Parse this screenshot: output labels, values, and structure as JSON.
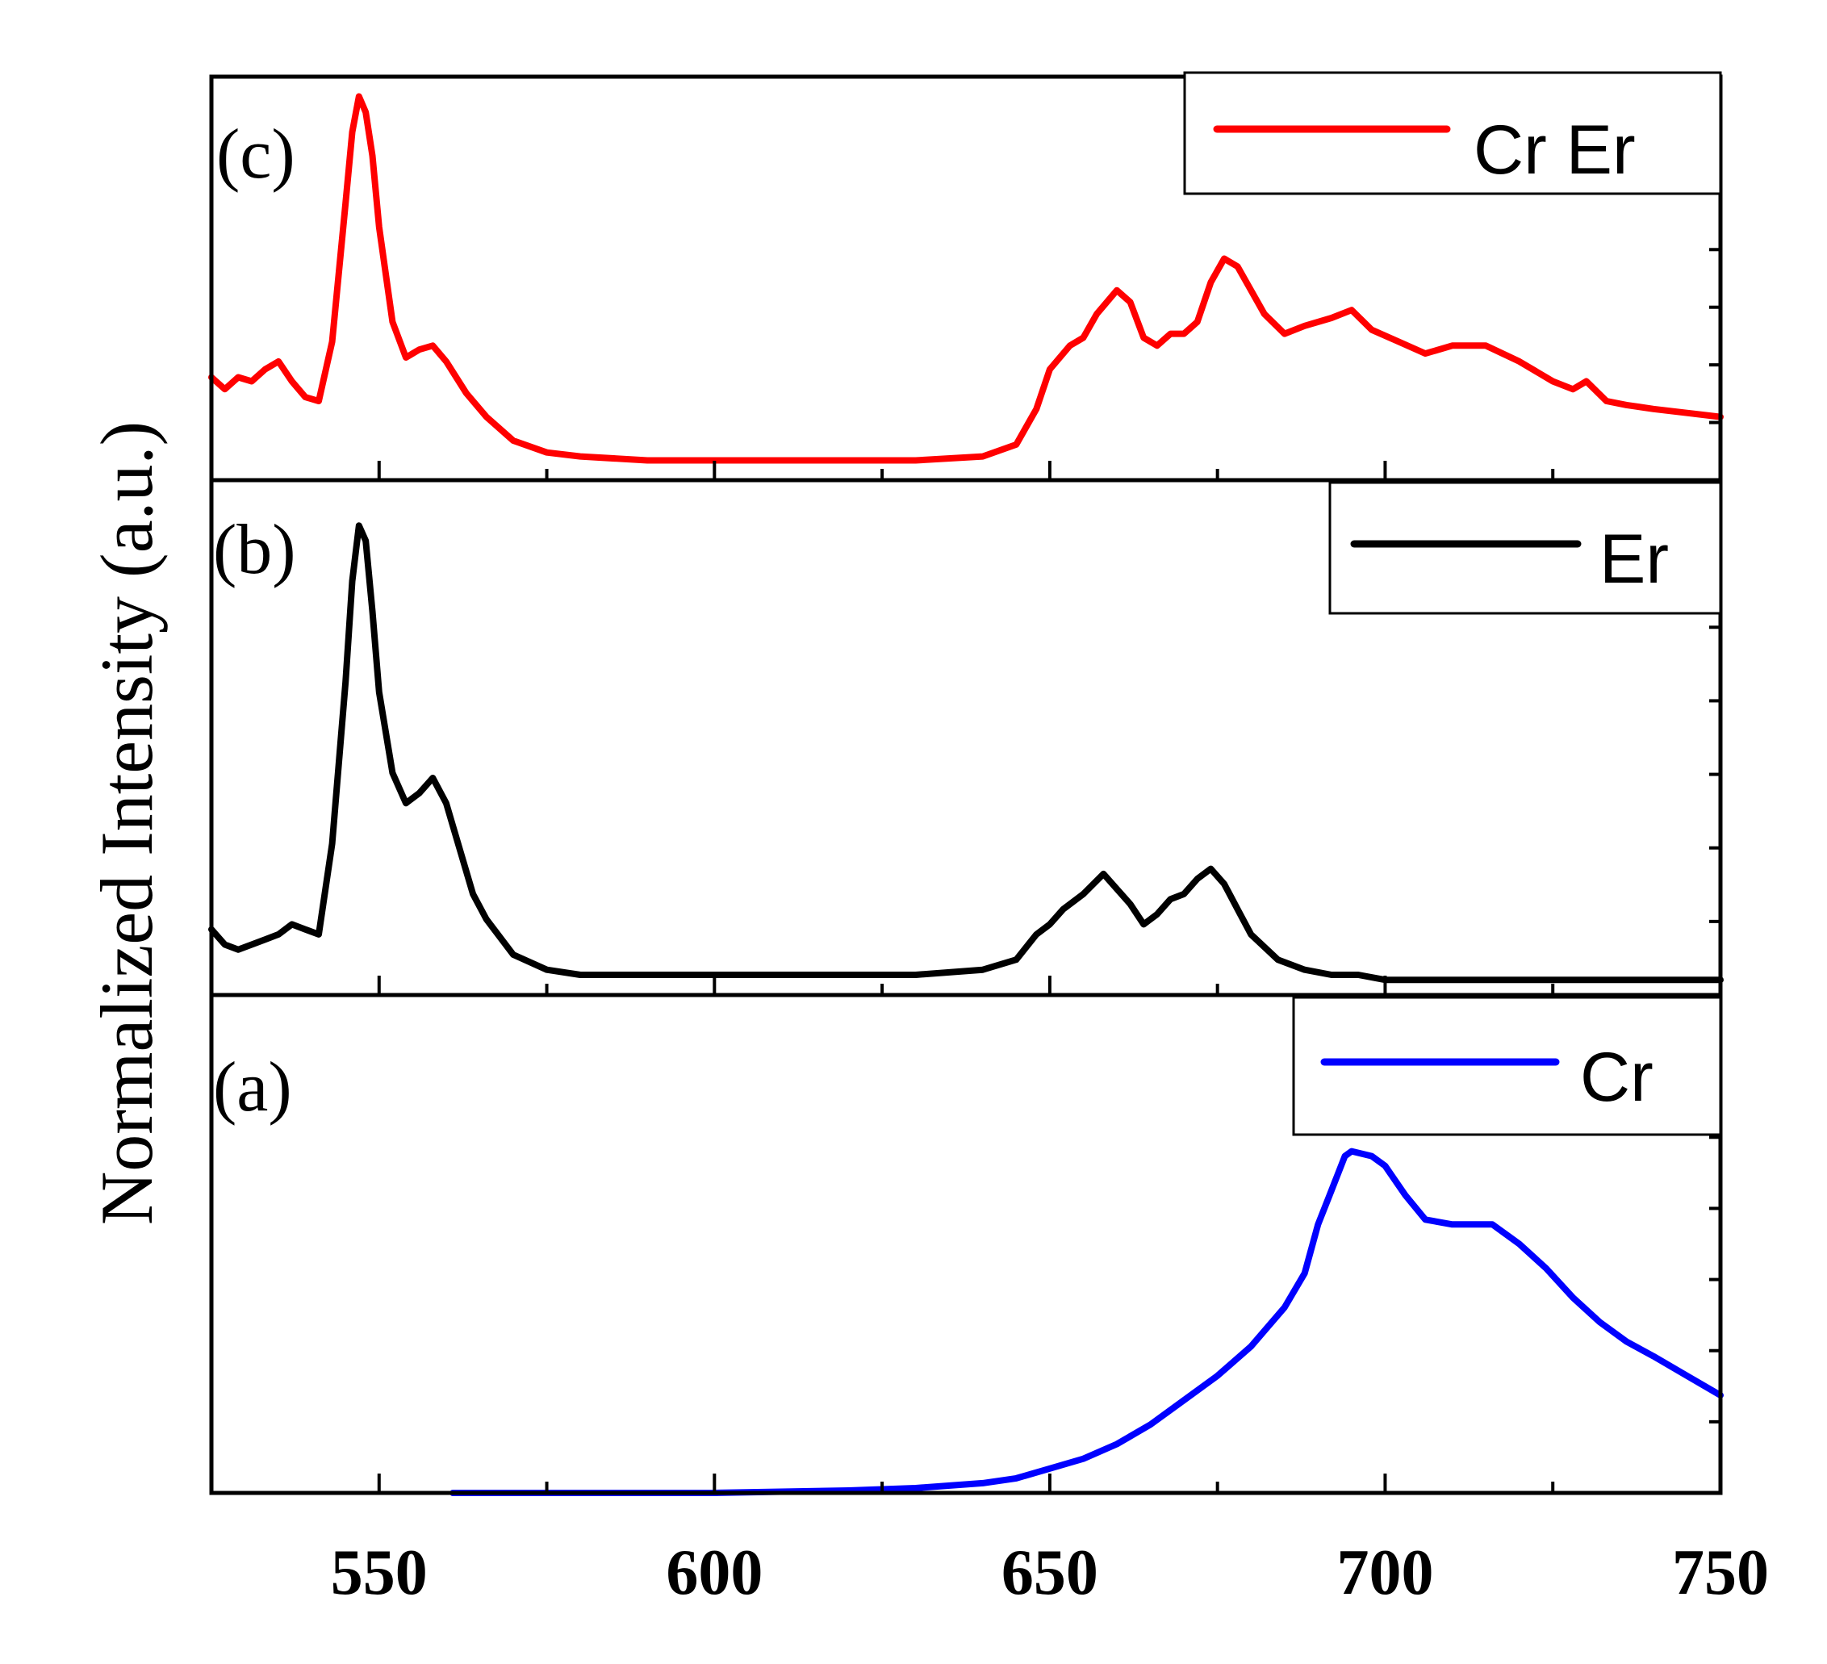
{
  "chart_data": {
    "type": "line",
    "ylabel": "Normalized Intensity (a.u.)",
    "xlabel": "",
    "xlim": [
      525,
      750
    ],
    "xticks": [
      550,
      600,
      650,
      700,
      750
    ],
    "xtick_labels": [
      "550",
      "600",
      "650",
      "700",
      "750"
    ],
    "shared_x": true,
    "panels": [
      {
        "id": "c",
        "label": "(c)",
        "ylim": [
          0,
          1.02
        ],
        "legend_position": "top-right",
        "series": [
          {
            "name": "Cr Er",
            "color": "#ff0000",
            "x": [
              525,
              527,
              529,
              531,
              533,
              535,
              537,
              539,
              541,
              543,
              545,
              546,
              547,
              548,
              549,
              550,
              552,
              554,
              556,
              558,
              560,
              563,
              566,
              570,
              575,
              580,
              590,
              600,
              610,
              620,
              630,
              640,
              645,
              648,
              650,
              653,
              655,
              657,
              660,
              662,
              664,
              666,
              668,
              670,
              672,
              674,
              676,
              678,
              680,
              682,
              685,
              688,
              692,
              695,
              698,
              702,
              706,
              710,
              715,
              720,
              725,
              728,
              730,
              733,
              736,
              740,
              745,
              750
            ],
            "values": [
              0.26,
              0.23,
              0.26,
              0.25,
              0.28,
              0.3,
              0.25,
              0.21,
              0.2,
              0.35,
              0.7,
              0.88,
              0.97,
              0.93,
              0.82,
              0.64,
              0.4,
              0.31,
              0.33,
              0.34,
              0.3,
              0.22,
              0.16,
              0.1,
              0.07,
              0.06,
              0.05,
              0.05,
              0.05,
              0.05,
              0.05,
              0.06,
              0.09,
              0.18,
              0.28,
              0.34,
              0.36,
              0.42,
              0.48,
              0.45,
              0.36,
              0.34,
              0.37,
              0.37,
              0.4,
              0.5,
              0.56,
              0.54,
              0.48,
              0.42,
              0.37,
              0.39,
              0.41,
              0.43,
              0.38,
              0.35,
              0.32,
              0.34,
              0.34,
              0.3,
              0.25,
              0.23,
              0.25,
              0.2,
              0.19,
              0.18,
              0.17,
              0.16
            ]
          }
        ]
      },
      {
        "id": "b",
        "label": "(b)",
        "ylim": [
          0,
          1.02
        ],
        "legend_position": "top-right",
        "series": [
          {
            "name": "Er",
            "color": "#000000",
            "x": [
              525,
              527,
              529,
              531,
              533,
              535,
              537,
              539,
              541,
              543,
              545,
              546,
              547,
              548,
              549,
              550,
              552,
              554,
              556,
              558,
              560,
              562,
              564,
              566,
              570,
              575,
              580,
              590,
              600,
              610,
              620,
              630,
              640,
              645,
              648,
              650,
              652,
              655,
              658,
              660,
              662,
              664,
              666,
              668,
              670,
              672,
              674,
              676,
              678,
              680,
              684,
              688,
              692,
              696,
              700,
              710,
              720,
              730,
              740,
              750
            ],
            "values": [
              0.13,
              0.1,
              0.09,
              0.1,
              0.11,
              0.12,
              0.14,
              0.13,
              0.12,
              0.3,
              0.62,
              0.82,
              0.93,
              0.9,
              0.76,
              0.6,
              0.44,
              0.38,
              0.4,
              0.43,
              0.38,
              0.29,
              0.2,
              0.15,
              0.08,
              0.05,
              0.04,
              0.04,
              0.04,
              0.04,
              0.04,
              0.04,
              0.05,
              0.07,
              0.12,
              0.14,
              0.17,
              0.2,
              0.24,
              0.21,
              0.18,
              0.14,
              0.16,
              0.19,
              0.2,
              0.23,
              0.25,
              0.22,
              0.17,
              0.12,
              0.07,
              0.05,
              0.04,
              0.04,
              0.03,
              0.03,
              0.03,
              0.03,
              0.03,
              0.03
            ]
          }
        ]
      },
      {
        "id": "a",
        "label": "(a)",
        "ylim": [
          0,
          1.02
        ],
        "legend_position": "top-right",
        "series": [
          {
            "name": "Cr",
            "color": "#0000ff",
            "x": [
              561,
              580,
              600,
              620,
              630,
              640,
              645,
              650,
              655,
              660,
              665,
              670,
              675,
              680,
              685,
              688,
              690,
              692,
              694,
              695,
              698,
              700,
              703,
              706,
              710,
              713,
              716,
              718,
              720,
              724,
              728,
              732,
              736,
              740,
              745,
              750
            ],
            "values": [
              0.0,
              0.0,
              0.0,
              0.005,
              0.01,
              0.02,
              0.03,
              0.05,
              0.07,
              0.1,
              0.14,
              0.19,
              0.24,
              0.3,
              0.38,
              0.45,
              0.55,
              0.62,
              0.69,
              0.7,
              0.69,
              0.67,
              0.61,
              0.56,
              0.55,
              0.55,
              0.55,
              0.53,
              0.51,
              0.46,
              0.4,
              0.35,
              0.31,
              0.28,
              0.24,
              0.2
            ]
          }
        ]
      }
    ]
  }
}
